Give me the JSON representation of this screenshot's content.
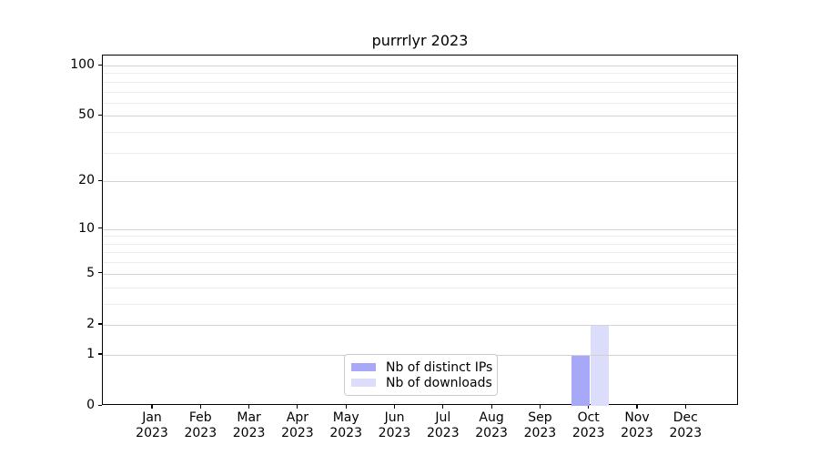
{
  "figure": {
    "title": "purrrlyr 2023"
  },
  "legend": {
    "items": [
      {
        "label": "Nb of distinct IPs",
        "color": "#a8a8f8"
      },
      {
        "label": "Nb of downloads",
        "color": "#dcdcfb"
      }
    ]
  },
  "colors": {
    "background": "#ffffff",
    "axis": "#000000",
    "grid_major": "#d2d2d2",
    "grid_minor": "#ececec",
    "legend_border": "#cccccc",
    "bar_distinct_ips": "#a8a8f8",
    "bar_downloads": "#dcdcfb"
  },
  "chart_data": {
    "type": "bar",
    "title": "purrrlyr 2023",
    "categories": [
      "Jan 2023",
      "Feb 2023",
      "Mar 2023",
      "Apr 2023",
      "May 2023",
      "Jun 2023",
      "Jul 2023",
      "Aug 2023",
      "Sep 2023",
      "Oct 2023",
      "Nov 2023",
      "Dec 2023"
    ],
    "series": [
      {
        "name": "Nb of distinct IPs",
        "color": "#a8a8f8",
        "values": [
          0,
          0,
          0,
          0,
          0,
          0,
          0,
          0,
          0,
          1,
          0,
          0
        ]
      },
      {
        "name": "Nb of downloads",
        "color": "#dcdcfb",
        "values": [
          0,
          0,
          0,
          0,
          0,
          0,
          0,
          0,
          0,
          2,
          0,
          0
        ]
      }
    ],
    "xlabel": "",
    "ylabel": "",
    "yscale": "log1p",
    "ylim": [
      0,
      115
    ],
    "y_major_ticks": [
      0,
      1,
      2,
      5,
      10,
      20,
      50,
      100
    ],
    "y_minor_ticks": [
      3,
      4,
      6,
      7,
      8,
      9,
      30,
      40,
      60,
      70,
      80,
      90
    ],
    "grid": "both",
    "legend_position": "lower-center"
  }
}
